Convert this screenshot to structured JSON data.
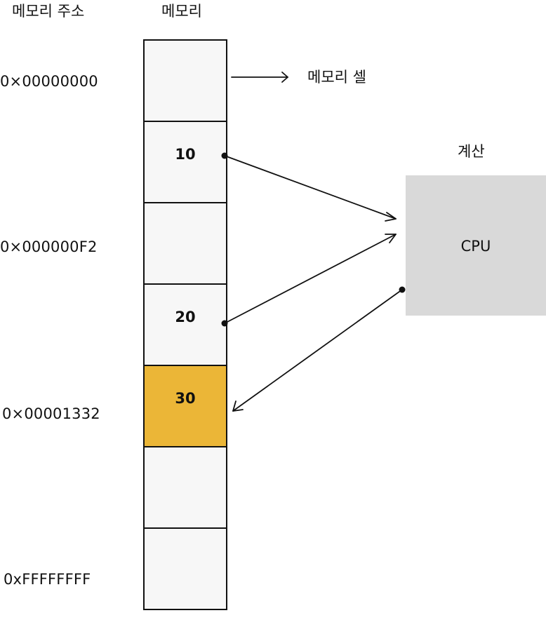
{
  "headers": {
    "address_column": "메모리 주소",
    "memory_column": "메모리"
  },
  "addresses": [
    "0×00000000",
    "0×000000F2",
    "0×00001332",
    "0xFFFFFFFF"
  ],
  "cells": [
    {
      "value": ""
    },
    {
      "value": "10"
    },
    {
      "value": ""
    },
    {
      "value": "20"
    },
    {
      "value": "30",
      "highlight": true
    },
    {
      "value": ""
    },
    {
      "value": ""
    }
  ],
  "memory_cell_label": "메모리 셀",
  "cpu": {
    "caption": "계산",
    "label": "CPU"
  },
  "colors": {
    "cell_fill": "#f7f7f7",
    "highlight_fill": "#ebb637",
    "cpu_fill": "#d9d9d9",
    "line": "#111111"
  }
}
